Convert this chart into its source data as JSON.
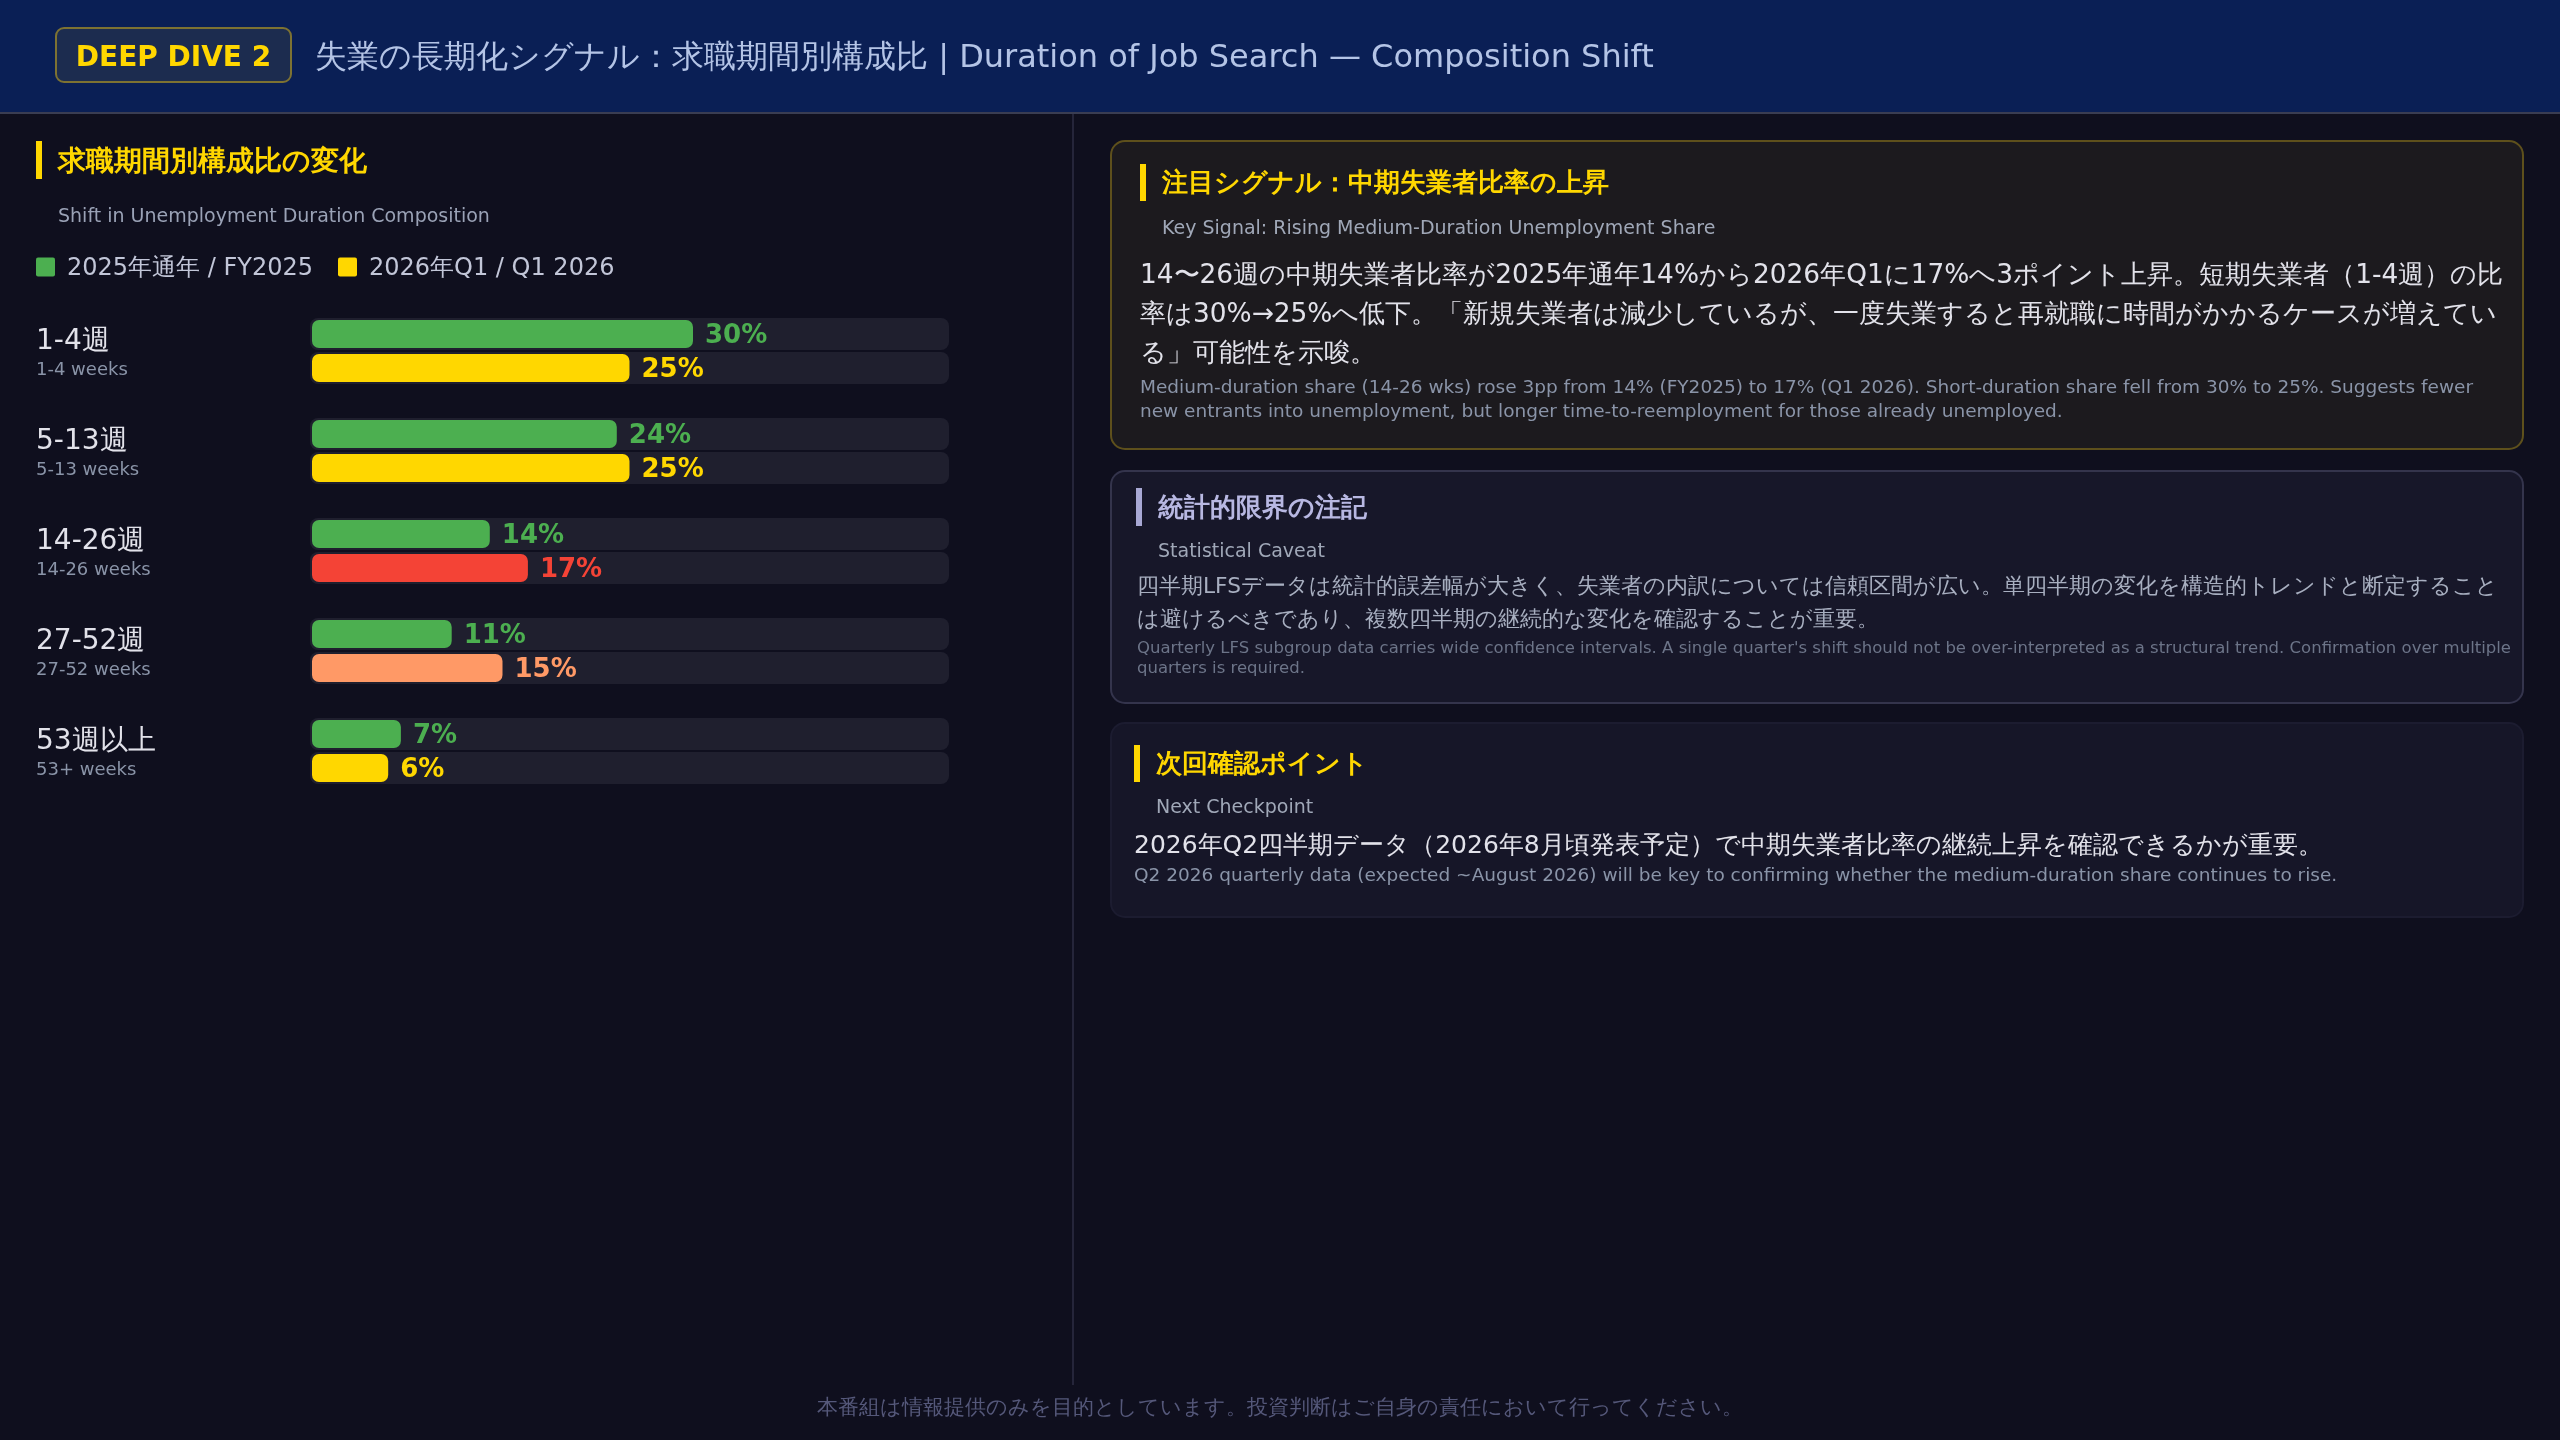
{
  "chart_data": [
    {
      "type": "other",
      "title": "失業の長期化シグナル：求職期間別構成比 | Duration of Job Search — Composition Shift",
      "annotations": [
        "DEEP DIVE 2"
      ]
    },
    {
      "type": "bar",
      "orientation": "horizontal",
      "title": "求職期間別構成比の変化",
      "subtitle": "Shift in Unemployment Duration Composition",
      "categories": [
        "1-4週\n1-4 weeks",
        "5-13週\n5-13 weeks",
        "14-26週\n14-26 weeks",
        "27-52週\n27-52 weeks",
        "53週以上\n53+ weeks"
      ],
      "series": [
        {
          "name": "2025年通年 / FY2025",
          "color": "#4caf50",
          "values": [
            30,
            24,
            14,
            11,
            7
          ],
          "value_labels": [
            "30%",
            "24%",
            "14%",
            "11%",
            "7%"
          ]
        },
        {
          "name": "2026年Q1 / Q1 2026",
          "color": "#ffd700",
          "colors": [
            "#ffd700",
            "#ffd700",
            "#f44336",
            "#ff9966",
            "#ffd700"
          ],
          "values": [
            25,
            25,
            17,
            15,
            6
          ],
          "value_labels": [
            "25%",
            "25%",
            "17%",
            "15%",
            "6%"
          ]
        }
      ],
      "xlim": [
        0,
        50
      ],
      "legend": "top left",
      "tick_labels": "y"
    },
    {
      "type": "other",
      "title": "注目シグナル：中期失業者比率の上昇",
      "subtitle": "Key Signal: Rising Medium-Duration Unemployment Share",
      "annotations": [
        "14〜26週の中期失業者比率が2025年通年14%から2026年Q1に17%へ3ポイント上昇。短期失業者（1-4週）の比率は30%→25%へ低下。「新規失業者は減少しているが、一度失業すると再就職に時間がかかるケースが増えている」可能性を示唆。",
        "Medium-duration share (14-26 wks) rose 3pp from 14% (FY2025) to 17% (Q1 2026). Short-duration share fell from 30% to 25%. Suggests fewer new entrants into unemployment, but longer time-to-reemployment for those already unemployed."
      ]
    },
    {
      "type": "other",
      "title": "統計的限界の注記",
      "subtitle": "Statistical Caveat",
      "annotations": [
        "四半期LFSデータは統計的誤差幅が大きく、失業者の内訳については信頼区間が広い。単四半期の変化を構造的トレンドと断定することは避けるべきであり、複数四半期の継続的な変化を確認することが重要。",
        "Quarterly LFS subgroup data carries wide confidence intervals. A single quarter's shift should not be over-interpreted as a structural trend. Confirmation over multiple quarters is required."
      ]
    },
    {
      "type": "other",
      "title": "次回確認ポイント",
      "subtitle": "Next Checkpoint",
      "annotations": [
        "2026年Q2四半期データ（2026年8月頃発表予定）で中期失業者比率の継続上昇を確認できるかが重要。",
        "Q2 2026 quarterly data (expected ~August 2026) will be key to confirming whether the medium-duration share continues to rise."
      ]
    },
    {
      "type": "other",
      "annotations": [
        "本番組は情報提供のみを目的としています。投資判断はご自身の責任において行ってください。"
      ]
    }
  ]
}
